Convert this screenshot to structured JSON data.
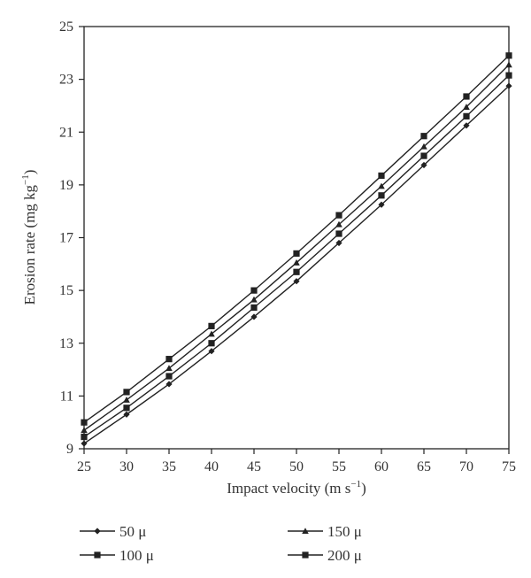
{
  "chart_data": {
    "type": "line",
    "title": "",
    "xlabel": "Impact velocity (m s",
    "xlabel_sup": "−1",
    "xlabel_close": ")",
    "ylabel": "Erosion rate (mg kg",
    "ylabel_sup": "−1",
    "ylabel_close": ")",
    "xlim": [
      25,
      75
    ],
    "ylim": [
      9,
      25
    ],
    "x": [
      25,
      30,
      35,
      40,
      45,
      50,
      55,
      60,
      65,
      70,
      75
    ],
    "x_ticks": [
      "25",
      "30",
      "35",
      "40",
      "45",
      "50",
      "55",
      "60",
      "65",
      "70",
      "75"
    ],
    "y_ticks": [
      "9",
      "11",
      "13",
      "15",
      "17",
      "19",
      "21",
      "23",
      "25"
    ],
    "grid": false,
    "legend_position": "bottom",
    "series": [
      {
        "name": "50 μ",
        "marker": "diamond",
        "values": [
          9.2,
          10.3,
          11.45,
          12.7,
          14.0,
          15.35,
          16.8,
          18.25,
          19.75,
          21.25,
          22.75
        ]
      },
      {
        "name": "100 μ",
        "marker": "square",
        "values": [
          9.45,
          10.55,
          11.75,
          13.0,
          14.35,
          15.7,
          17.15,
          18.6,
          20.1,
          21.6,
          23.15
        ]
      },
      {
        "name": "150 μ",
        "marker": "triangle",
        "values": [
          9.7,
          10.85,
          12.05,
          13.35,
          14.65,
          16.05,
          17.5,
          18.95,
          20.45,
          21.95,
          23.55
        ]
      },
      {
        "name": "200 μ",
        "marker": "square",
        "values": [
          10.0,
          11.15,
          12.4,
          13.65,
          15.0,
          16.4,
          17.85,
          19.35,
          20.85,
          22.35,
          23.9
        ]
      }
    ],
    "colors": {
      "line": "#222222",
      "axis": "#222222"
    }
  }
}
